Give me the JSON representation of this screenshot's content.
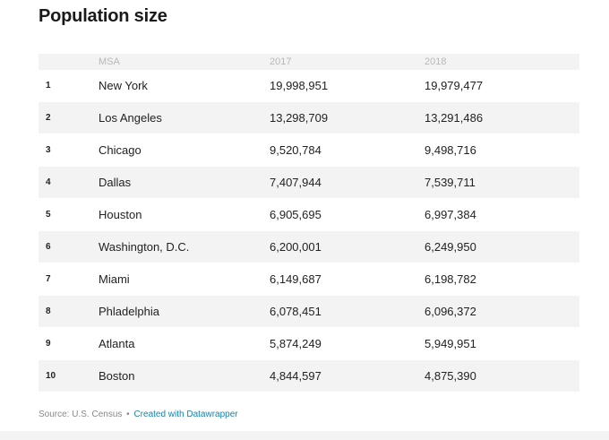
{
  "title": "Population size",
  "table": {
    "headers": {
      "rank": "",
      "msa": "MSA",
      "y2017": "2017",
      "y2018": "2018"
    },
    "rows": [
      {
        "rank": "1",
        "msa": "New York",
        "y2017": "19,998,951",
        "y2018": "19,979,477"
      },
      {
        "rank": "2",
        "msa": "Los Angeles",
        "y2017": "13,298,709",
        "y2018": "13,291,486"
      },
      {
        "rank": "3",
        "msa": "Chicago",
        "y2017": "9,520,784",
        "y2018": "9,498,716"
      },
      {
        "rank": "4",
        "msa": "Dallas",
        "y2017": "7,407,944",
        "y2018": "7,539,711"
      },
      {
        "rank": "5",
        "msa": "Houston",
        "y2017": "6,905,695",
        "y2018": "6,997,384"
      },
      {
        "rank": "6",
        "msa": "Washington, D.C.",
        "y2017": "6,200,001",
        "y2018": "6,249,950"
      },
      {
        "rank": "7",
        "msa": "Miami",
        "y2017": "6,149,687",
        "y2018": "6,198,782"
      },
      {
        "rank": "8",
        "msa": "Phladelphia",
        "y2017": "6,078,451",
        "y2018": "6,096,372"
      },
      {
        "rank": "9",
        "msa": "Atlanta",
        "y2017": "5,874,249",
        "y2018": "5,949,951"
      },
      {
        "rank": "10",
        "msa": "Boston",
        "y2017": "4,844,597",
        "y2018": "4,875,390"
      }
    ]
  },
  "footer": {
    "source": "Source: U.S. Census",
    "separator": "•",
    "credit_link": "Created with Datawrapper"
  },
  "colors": {
    "row_shade": "#f3f3f3",
    "header_text": "#b8b8b8",
    "link": "#1d81a2"
  }
}
